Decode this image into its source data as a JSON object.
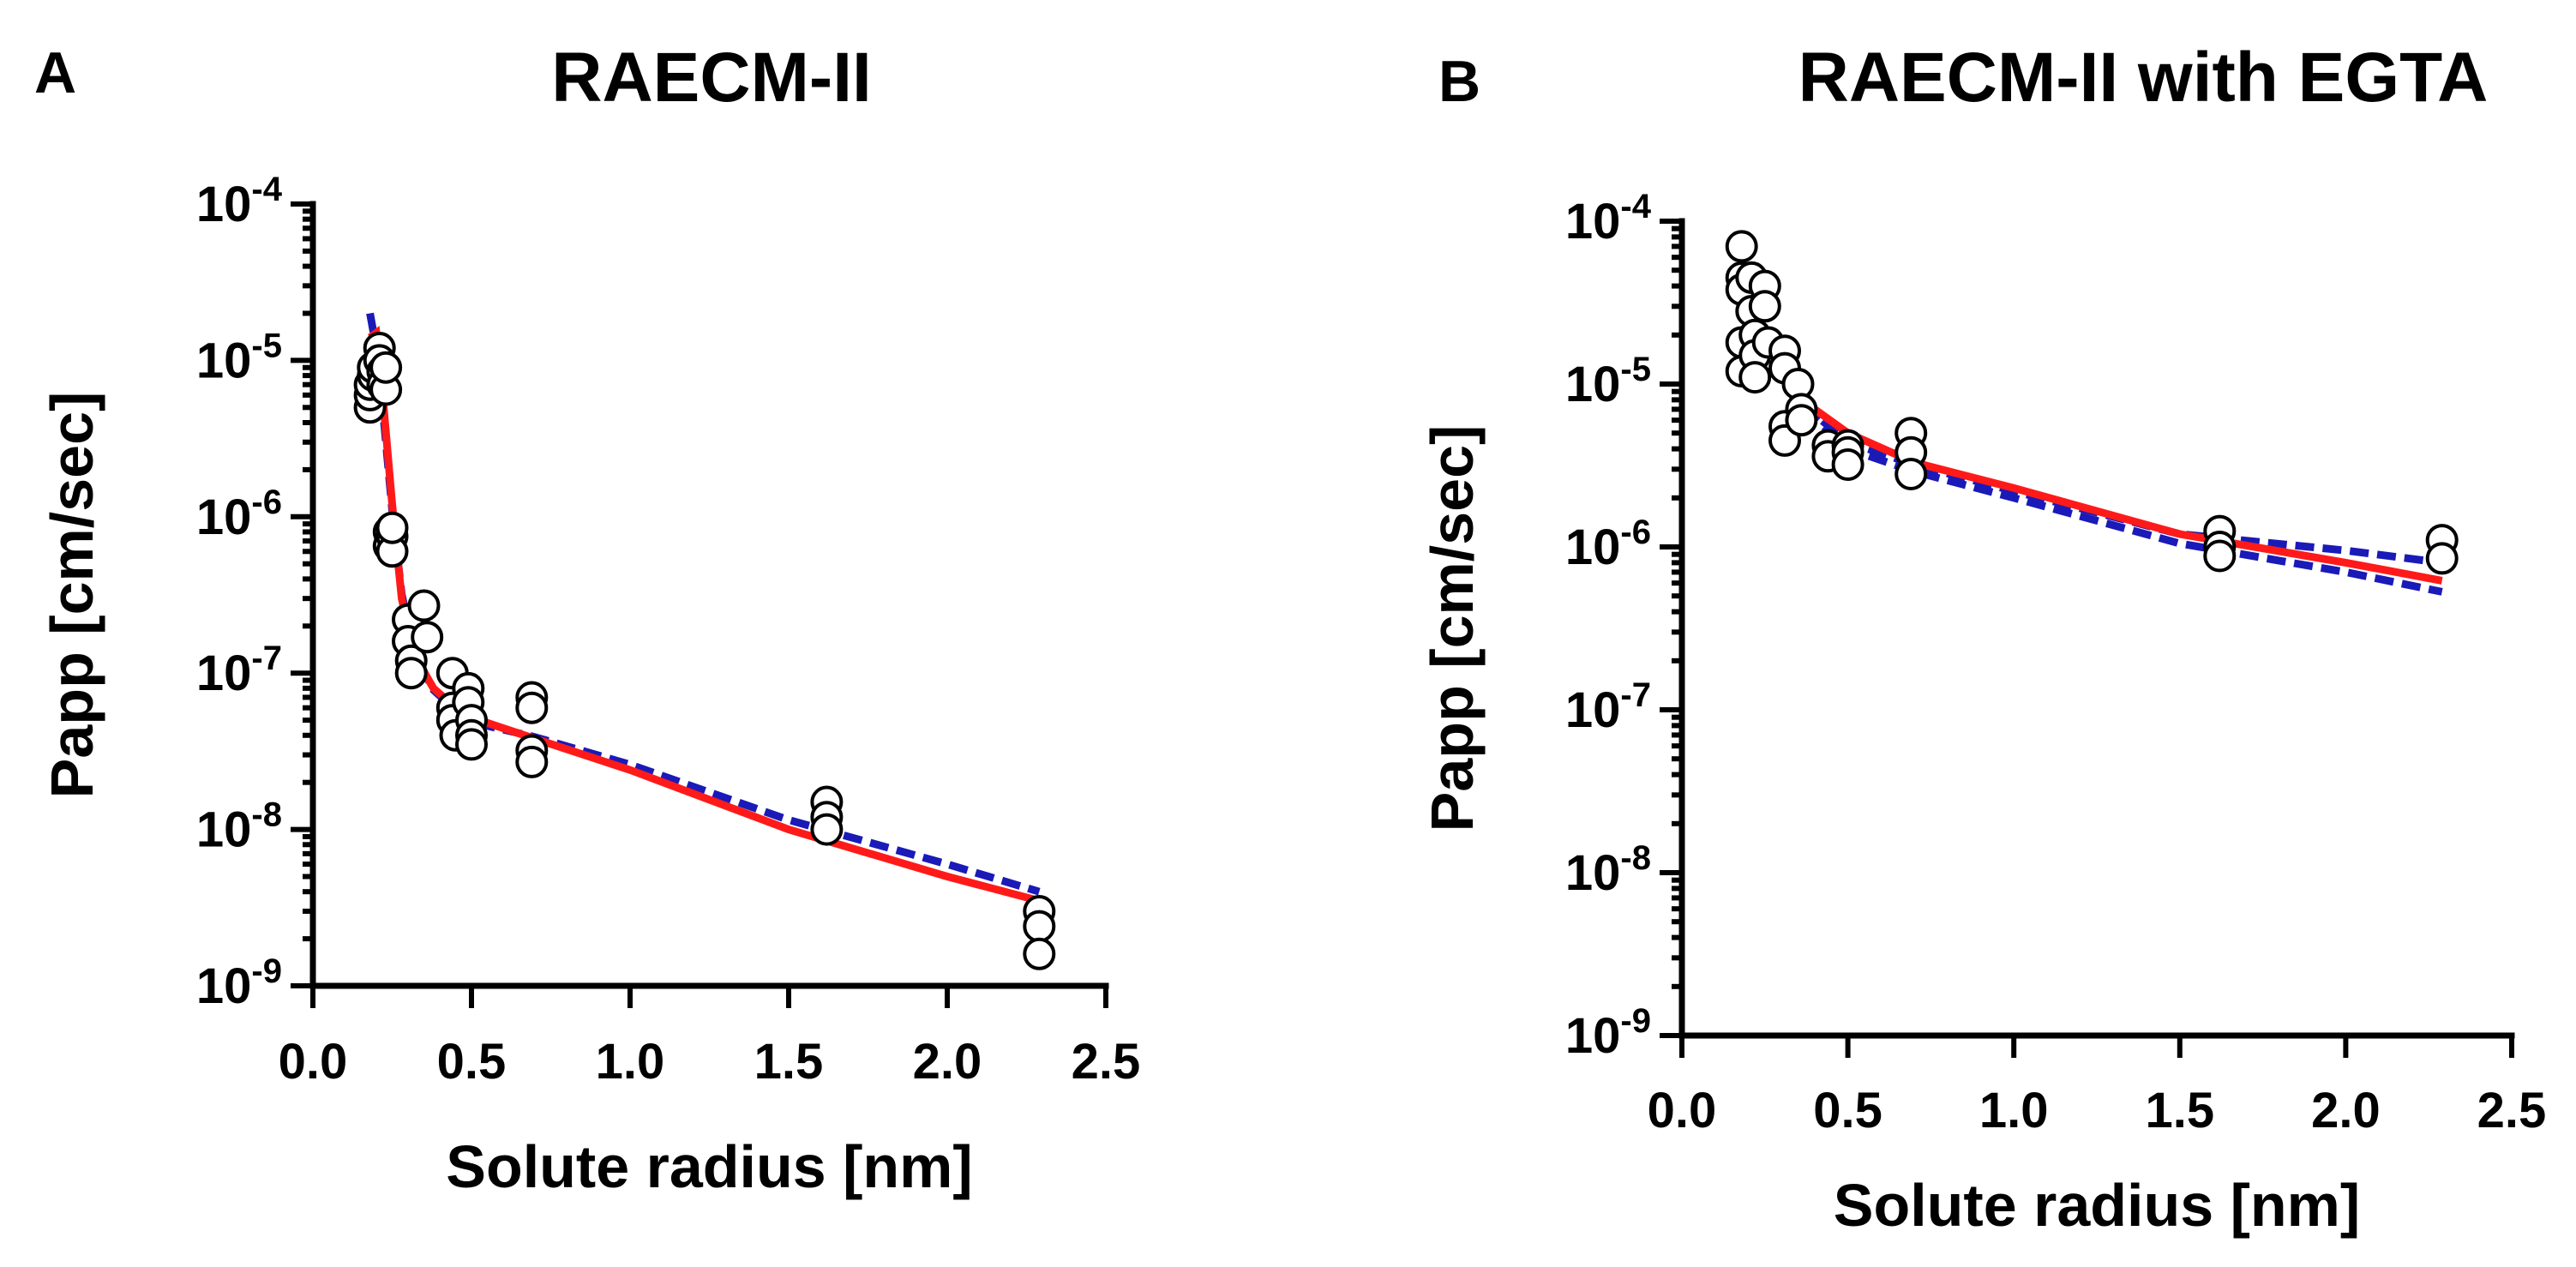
{
  "chart_data": [
    {
      "type": "scatter",
      "panel": "A",
      "title": "RAECM-II",
      "xlabel": "Solute radius [nm]",
      "ylabel": "Papp [cm/sec]",
      "xlim": [
        0,
        2.5
      ],
      "ylim_exp": [
        -9,
        -4
      ],
      "xticks": [
        "0.0",
        "0.5",
        "1.0",
        "1.5",
        "2.0",
        "2.5"
      ],
      "yticks": [
        {
          "base": "10",
          "exp": "-9"
        },
        {
          "base": "10",
          "exp": "-8"
        },
        {
          "base": "10",
          "exp": "-7"
        },
        {
          "base": "10",
          "exp": "-6"
        },
        {
          "base": "10",
          "exp": "-5"
        },
        {
          "base": "10",
          "exp": "-4"
        }
      ],
      "points": [
        [
          0.18,
          5e-06
        ],
        [
          0.18,
          6e-06
        ],
        [
          0.18,
          7e-06
        ],
        [
          0.19,
          8e-06
        ],
        [
          0.19,
          9e-06
        ],
        [
          0.21,
          1.2e-05
        ],
        [
          0.21,
          1e-05
        ],
        [
          0.22,
          8.5e-06
        ],
        [
          0.22,
          7e-06
        ],
        [
          0.23,
          6.5e-06
        ],
        [
          0.23,
          9e-06
        ],
        [
          0.24,
          8e-07
        ],
        [
          0.24,
          6.5e-07
        ],
        [
          0.25,
          7.5e-07
        ],
        [
          0.25,
          6e-07
        ],
        [
          0.25,
          8.5e-07
        ],
        [
          0.3,
          2.2e-07
        ],
        [
          0.3,
          1.6e-07
        ],
        [
          0.31,
          1.2e-07
        ],
        [
          0.31,
          1e-07
        ],
        [
          0.35,
          2.7e-07
        ],
        [
          0.36,
          1.7e-07
        ],
        [
          0.44,
          1e-07
        ],
        [
          0.44,
          6e-08
        ],
        [
          0.44,
          5e-08
        ],
        [
          0.45,
          4e-08
        ],
        [
          0.49,
          8e-08
        ],
        [
          0.49,
          6.5e-08
        ],
        [
          0.5,
          5e-08
        ],
        [
          0.5,
          4e-08
        ],
        [
          0.5,
          3.5e-08
        ],
        [
          0.69,
          7e-08
        ],
        [
          0.69,
          6e-08
        ],
        [
          0.69,
          3.2e-08
        ],
        [
          0.69,
          2.7e-08
        ],
        [
          1.62,
          1.5e-08
        ],
        [
          1.62,
          1.2e-08
        ],
        [
          1.62,
          1e-08
        ],
        [
          2.29,
          3e-09
        ],
        [
          2.29,
          2.4e-09
        ],
        [
          2.29,
          1.6e-09
        ]
      ],
      "fit_solid": [
        [
          0.18,
          1.4e-05
        ],
        [
          0.2,
          1.5e-05
        ],
        [
          0.22,
          6e-06
        ],
        [
          0.25,
          1.2e-06
        ],
        [
          0.28,
          3e-07
        ],
        [
          0.32,
          1.3e-07
        ],
        [
          0.38,
          8e-08
        ],
        [
          0.45,
          6e-08
        ],
        [
          0.55,
          4.8e-08
        ],
        [
          0.7,
          3.8e-08
        ],
        [
          1.0,
          2.4e-08
        ],
        [
          1.5,
          1e-08
        ],
        [
          2.0,
          5e-09
        ],
        [
          2.29,
          3.5e-09
        ]
      ],
      "fit_dashed": [
        [
          0.18,
          2e-05
        ],
        [
          0.2,
          1.2e-05
        ],
        [
          0.22,
          5e-06
        ],
        [
          0.25,
          1.1e-06
        ],
        [
          0.28,
          3.2e-07
        ],
        [
          0.32,
          1.35e-07
        ],
        [
          0.38,
          7.8e-08
        ],
        [
          0.45,
          5.8e-08
        ],
        [
          0.55,
          4.6e-08
        ],
        [
          0.7,
          3.9e-08
        ],
        [
          1.0,
          2.6e-08
        ],
        [
          1.5,
          1.15e-08
        ],
        [
          2.0,
          6e-09
        ],
        [
          2.29,
          4e-09
        ]
      ]
    },
    {
      "type": "scatter",
      "panel": "B",
      "title": "RAECM-II with EGTA",
      "xlabel": "Solute radius [nm]",
      "ylabel": "Papp [cm/sec]",
      "xlim": [
        0,
        2.5
      ],
      "ylim_exp": [
        -9,
        -4
      ],
      "xticks": [
        "0.0",
        "0.5",
        "1.0",
        "1.5",
        "2.0",
        "2.5"
      ],
      "yticks": [
        {
          "base": "10",
          "exp": "-9"
        },
        {
          "base": "10",
          "exp": "-8"
        },
        {
          "base": "10",
          "exp": "-7"
        },
        {
          "base": "10",
          "exp": "-6"
        },
        {
          "base": "10",
          "exp": "-5"
        },
        {
          "base": "10",
          "exp": "-4"
        }
      ],
      "points": [
        [
          0.18,
          7e-05
        ],
        [
          0.18,
          4.5e-05
        ],
        [
          0.18,
          3.8e-05
        ],
        [
          0.18,
          1.8e-05
        ],
        [
          0.18,
          1.2e-05
        ],
        [
          0.21,
          4.5e-05
        ],
        [
          0.21,
          2.8e-05
        ],
        [
          0.22,
          2e-05
        ],
        [
          0.22,
          1.5e-05
        ],
        [
          0.22,
          1.1e-05
        ],
        [
          0.25,
          4e-05
        ],
        [
          0.25,
          3e-05
        ],
        [
          0.26,
          1.8e-05
        ],
        [
          0.31,
          1.6e-05
        ],
        [
          0.31,
          1.25e-05
        ],
        [
          0.31,
          5.5e-06
        ],
        [
          0.31,
          4.5e-06
        ],
        [
          0.35,
          1e-05
        ],
        [
          0.36,
          7e-06
        ],
        [
          0.36,
          6e-06
        ],
        [
          0.44,
          4.2e-06
        ],
        [
          0.44,
          3.6e-06
        ],
        [
          0.5,
          4.2e-06
        ],
        [
          0.5,
          3.8e-06
        ],
        [
          0.5,
          3.2e-06
        ],
        [
          0.69,
          5e-06
        ],
        [
          0.69,
          3.8e-06
        ],
        [
          0.69,
          2.8e-06
        ],
        [
          1.62,
          1.25e-06
        ],
        [
          1.62,
          1e-06
        ],
        [
          1.62,
          8.8e-07
        ],
        [
          2.29,
          1.1e-06
        ],
        [
          2.29,
          8.5e-07
        ]
      ],
      "fit_solid": [
        [
          0.25,
          2e-05
        ],
        [
          0.3,
          1.4e-05
        ],
        [
          0.35,
          9e-06
        ],
        [
          0.4,
          7e-06
        ],
        [
          0.5,
          5e-06
        ],
        [
          0.7,
          3.3e-06
        ],
        [
          1.0,
          2.3e-06
        ],
        [
          1.5,
          1.2e-06
        ],
        [
          2.0,
          8e-07
        ],
        [
          2.29,
          6.2e-07
        ]
      ],
      "fit_dashed": [
        [
          0.25,
          2.2e-05
        ],
        [
          0.3,
          1.5e-05
        ],
        [
          0.35,
          9.5e-06
        ],
        [
          0.4,
          6.5e-06
        ],
        [
          0.5,
          4.4e-06
        ],
        [
          0.7,
          3.2e-06
        ],
        [
          1.0,
          2.2e-06
        ],
        [
          1.5,
          1.2e-06
        ],
        [
          2.0,
          9.5e-07
        ],
        [
          2.29,
          8e-07
        ]
      ],
      "fit_dashed_2": [
        [
          0.25,
          2e-05
        ],
        [
          0.3,
          1.3e-05
        ],
        [
          0.35,
          8.5e-06
        ],
        [
          0.4,
          6.2e-06
        ],
        [
          0.5,
          4e-06
        ],
        [
          0.7,
          2.9e-06
        ],
        [
          1.0,
          2e-06
        ],
        [
          1.5,
          1.05e-06
        ],
        [
          2.0,
          7e-07
        ],
        [
          2.29,
          5.3e-07
        ]
      ]
    }
  ]
}
